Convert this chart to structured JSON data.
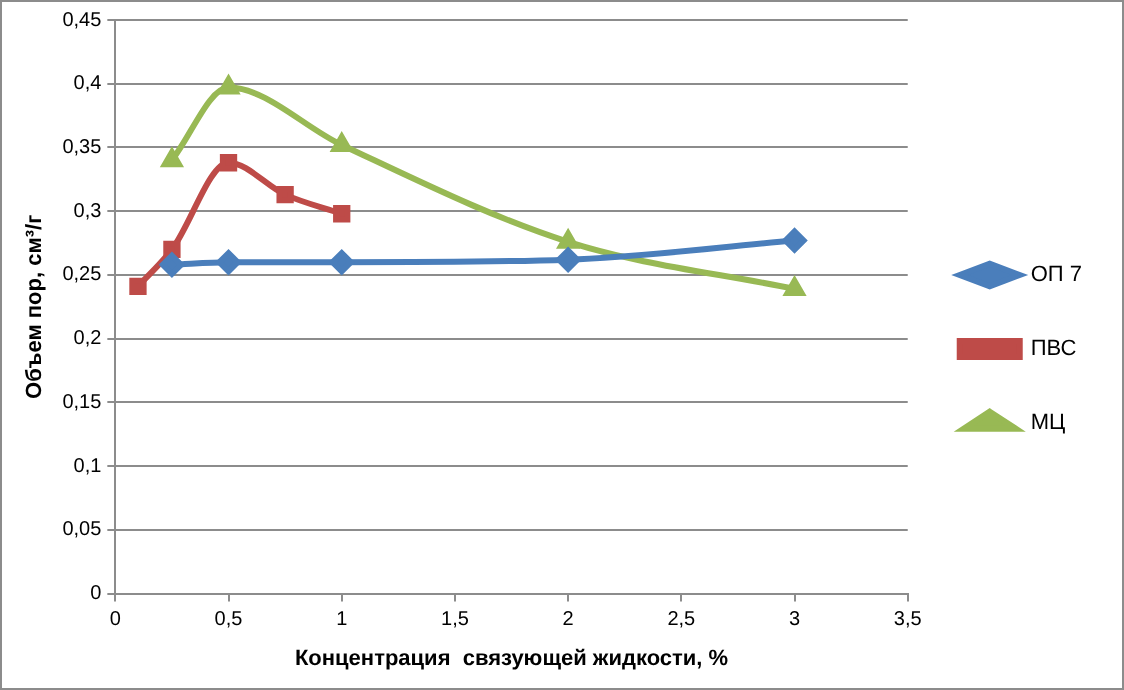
{
  "chart_data": {
    "type": "line",
    "xlabel": "Концентрация  связующей жидкости, %",
    "ylabel": "Объем пор, см³/г",
    "xlim": [
      0,
      3.5
    ],
    "xticks": [
      0,
      {
        "value": 0.5,
        "label": "0,5"
      },
      1,
      {
        "value": 1.5,
        "label": "1,5"
      },
      2,
      {
        "value": 2.5,
        "label": "2,5"
      },
      3,
      {
        "value": 3.5,
        "label": "3,5"
      }
    ],
    "ylim": [
      0,
      0.45
    ],
    "yticks": [
      0,
      {
        "value": 0.05,
        "label": "0,05"
      },
      {
        "value": 0.1,
        "label": "0,1"
      },
      {
        "value": 0.15,
        "label": "0,15"
      },
      {
        "value": 0.2,
        "label": "0,2"
      },
      {
        "value": 0.25,
        "label": "0,25"
      },
      {
        "value": 0.3,
        "label": "0,3"
      },
      {
        "value": 0.35,
        "label": "0,35"
      },
      {
        "value": 0.4,
        "label": "0,4"
      },
      {
        "value": 0.45,
        "label": "0,45"
      }
    ],
    "grid": "y",
    "legend": "right",
    "series": [
      {
        "name": "ОП 7",
        "color": "#4a7ebb",
        "marker": "diamond",
        "x": [
          0.25,
          0.5,
          1,
          2,
          3
        ],
        "values": [
          0.258,
          0.26,
          0.26,
          0.262,
          0.277
        ]
      },
      {
        "name": "ПВС",
        "color": "#be4b48",
        "marker": "square",
        "x": [
          0.1,
          0.25,
          0.5,
          0.75,
          1
        ],
        "values": [
          0.241,
          0.27,
          0.338,
          0.313,
          0.298
        ]
      },
      {
        "name": "МЦ",
        "color": "#98b954",
        "marker": "triangle",
        "x": [
          0.25,
          0.5,
          1,
          2,
          3
        ],
        "values": [
          0.34,
          0.397,
          0.352,
          0.276,
          0.239
        ]
      }
    ]
  }
}
